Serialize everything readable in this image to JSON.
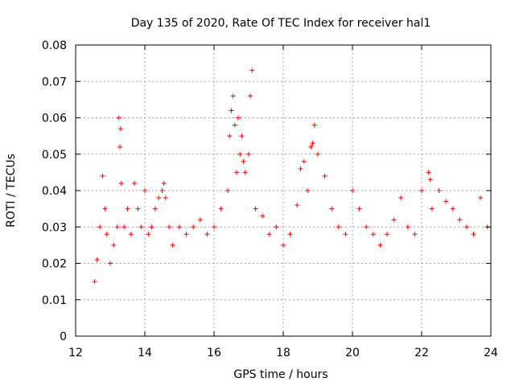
{
  "chart_data": {
    "type": "scatter",
    "title": "Day 135 of 2020, Rate Of TEC Index for receiver hal1",
    "xlabel": "GPS time / hours",
    "ylabel": "ROTI / TECUs",
    "xlim": [
      12,
      24
    ],
    "ylim": [
      0,
      0.08
    ],
    "xticks": [
      12,
      14,
      16,
      18,
      20,
      22,
      24
    ],
    "yticks": [
      0,
      0.01,
      0.02,
      0.03,
      0.04,
      0.05,
      0.06,
      0.07,
      0.08
    ],
    "grid": true,
    "marker": "plus",
    "color": "#ff0000",
    "series": [
      {
        "name": "ROTI hal1",
        "x": [
          12.55,
          12.62,
          12.7,
          12.78,
          12.85,
          12.9,
          13.0,
          13.1,
          13.2,
          13.25,
          13.28,
          13.3,
          13.32,
          13.4,
          13.5,
          13.6,
          13.7,
          13.8,
          13.9,
          14.0,
          14.1,
          14.2,
          14.3,
          14.4,
          14.5,
          14.55,
          14.6,
          14.7,
          14.8,
          15.0,
          15.2,
          15.4,
          15.6,
          15.8,
          16.0,
          16.2,
          16.4,
          16.45,
          16.5,
          16.55,
          16.6,
          16.65,
          16.7,
          16.75,
          16.8,
          16.85,
          16.9,
          17.0,
          17.05,
          17.1,
          17.2,
          17.4,
          17.6,
          17.8,
          18.0,
          18.2,
          18.4,
          18.5,
          18.6,
          18.7,
          18.8,
          18.85,
          18.9,
          19.0,
          19.2,
          19.4,
          19.6,
          19.8,
          20.0,
          20.2,
          20.4,
          20.6,
          20.8,
          21.0,
          21.2,
          21.4,
          21.6,
          21.8,
          22.0,
          22.2,
          22.25,
          22.3,
          22.5,
          22.7,
          22.9,
          23.1,
          23.3,
          23.5,
          23.7,
          23.9
        ],
        "y": [
          0.015,
          0.021,
          0.03,
          0.044,
          0.035,
          0.028,
          0.02,
          0.025,
          0.03,
          0.06,
          0.052,
          0.057,
          0.042,
          0.03,
          0.035,
          0.028,
          0.042,
          0.035,
          0.03,
          0.04,
          0.028,
          0.03,
          0.035,
          0.038,
          0.04,
          0.042,
          0.038,
          0.03,
          0.025,
          0.03,
          0.028,
          0.03,
          0.032,
          0.028,
          0.03,
          0.035,
          0.04,
          0.055,
          0.062,
          0.066,
          0.058,
          0.045,
          0.06,
          0.05,
          0.055,
          0.048,
          0.045,
          0.05,
          0.066,
          0.073,
          0.035,
          0.033,
          0.028,
          0.03,
          0.025,
          0.028,
          0.036,
          0.046,
          0.048,
          0.04,
          0.052,
          0.053,
          0.058,
          0.05,
          0.044,
          0.035,
          0.03,
          0.028,
          0.04,
          0.035,
          0.03,
          0.028,
          0.025,
          0.028,
          0.032,
          0.038,
          0.03,
          0.028,
          0.04,
          0.045,
          0.043,
          0.035,
          0.04,
          0.037,
          0.035,
          0.032,
          0.03,
          0.028,
          0.038,
          0.03
        ]
      }
    ]
  }
}
